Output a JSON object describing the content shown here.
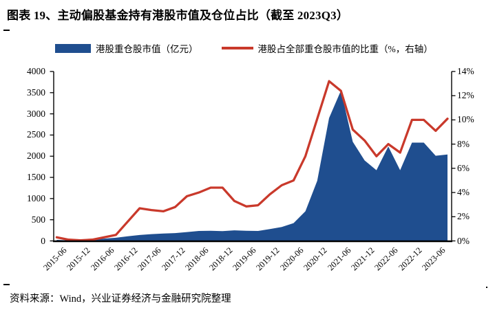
{
  "page": {
    "title": "图表 19、主动偏股基金持有港股市值及仓位占比（截至 2023Q3）",
    "source": "资料来源：Wind，兴业证券经济与金融研究院整理"
  },
  "colors": {
    "area_blue": "#1F4E8F",
    "line_red": "#C9392B",
    "axis_black": "#000000"
  },
  "legend": [
    {
      "label": "港股重仓股市值（亿元）",
      "type": "area",
      "color": "#1F4E8F"
    },
    {
      "label": "港股占全部重仓股市值的比重（%，右轴）",
      "type": "line",
      "color": "#C9392B"
    }
  ],
  "chart_data": {
    "type": "combo",
    "x": [
      "2015-06",
      "2015-09",
      "2015-12",
      "2016-03",
      "2016-06",
      "2016-09",
      "2016-12",
      "2017-03",
      "2017-06",
      "2017-09",
      "2017-12",
      "2018-03",
      "2018-06",
      "2018-09",
      "2018-12",
      "2019-03",
      "2019-06",
      "2019-09",
      "2019-12",
      "2020-03",
      "2020-06",
      "2020-09",
      "2020-12",
      "2021-03",
      "2021-06",
      "2021-09",
      "2021-12",
      "2022-03",
      "2022-06",
      "2022-09",
      "2022-12",
      "2023-03",
      "2023-06",
      "2023-09"
    ],
    "x_tick_labels": [
      "2015-06",
      "2015-12",
      "2016-06",
      "2016-12",
      "2017-06",
      "2017-12",
      "2018-06",
      "2018-12",
      "2019-06",
      "2019-12",
      "2020-06",
      "2020-12",
      "2021-06",
      "2021-12",
      "2022-06",
      "2022-12",
      "2023-06"
    ],
    "series": [
      {
        "name": "港股重仓股市值（亿元）",
        "type": "area",
        "axis": "left",
        "color": "#1F4E8F",
        "values": [
          25,
          15,
          20,
          30,
          55,
          75,
          110,
          140,
          160,
          175,
          185,
          210,
          235,
          240,
          230,
          250,
          240,
          235,
          280,
          330,
          420,
          700,
          1420,
          2900,
          3550,
          2340,
          1900,
          1670,
          2230,
          1670,
          2320,
          2320,
          2010,
          2040
        ]
      },
      {
        "name": "港股占全部重仓股市值的比重（%，右轴）",
        "type": "line",
        "axis": "right",
        "color": "#C9392B",
        "values": [
          0.3,
          0.1,
          0.05,
          0.1,
          0.3,
          0.5,
          1.6,
          2.7,
          2.55,
          2.45,
          2.8,
          3.7,
          4.0,
          4.4,
          4.4,
          3.3,
          2.85,
          2.95,
          3.85,
          4.6,
          5.0,
          7.0,
          10.1,
          13.2,
          12.4,
          9.2,
          8.3,
          7.0,
          8.0,
          7.3,
          10.0,
          10.0,
          9.1,
          10.1
        ]
      }
    ],
    "left_axis": {
      "min": 0,
      "max": 4000,
      "step": 500,
      "tick_labels": [
        "0",
        "500",
        "1000",
        "1500",
        "2000",
        "2500",
        "3000",
        "3500",
        "4000"
      ]
    },
    "right_axis": {
      "min": 0,
      "max": 14,
      "step": 2,
      "tick_labels": [
        "0%",
        "2%",
        "4%",
        "6%",
        "8%",
        "10%",
        "12%",
        "14%"
      ]
    },
    "title": "图表 19、主动偏股基金持有港股市值及仓位占比（截至 2023Q3）",
    "grid": false,
    "legend_position": "top"
  }
}
